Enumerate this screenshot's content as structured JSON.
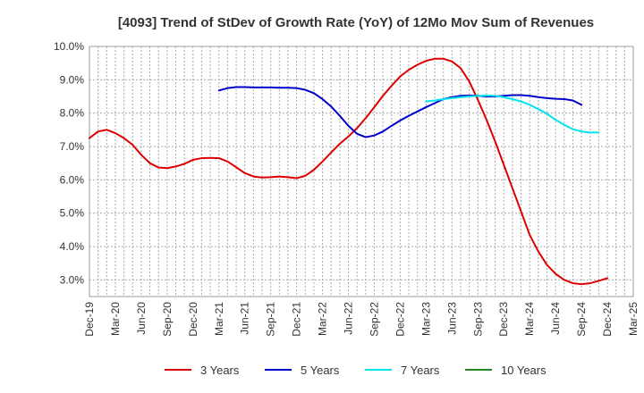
{
  "chart_data": {
    "type": "line",
    "title": "[4093]  Trend of StDev of Growth Rate (YoY) of 12Mo Mov Sum of Revenues",
    "xlabel": "",
    "ylabel": "",
    "ylim": [
      2.5,
      10.0
    ],
    "y_ticks": [
      3.0,
      4.0,
      5.0,
      6.0,
      7.0,
      8.0,
      9.0,
      10.0
    ],
    "y_tick_labels": [
      "3.0%",
      "4.0%",
      "5.0%",
      "6.0%",
      "7.0%",
      "8.0%",
      "9.0%",
      "10.0%"
    ],
    "x_start": "Dec-19",
    "x_tick_labels": [
      "Dec-19",
      "Mar-20",
      "Jun-20",
      "Sep-20",
      "Dec-20",
      "Mar-21",
      "Jun-21",
      "Sep-21",
      "Dec-21",
      "Mar-22",
      "Jun-22",
      "Sep-22",
      "Dec-22",
      "Mar-23",
      "Jun-23",
      "Sep-23",
      "Dec-23",
      "Mar-24",
      "Jun-24",
      "Sep-24",
      "Dec-24",
      "Mar-25"
    ],
    "grid": true,
    "legend_position": "bottom",
    "series": [
      {
        "name": "3 Years",
        "color": "#dd0000",
        "start_index": 0,
        "values": [
          7.25,
          7.45,
          7.5,
          7.4,
          7.25,
          7.05,
          6.75,
          6.5,
          6.37,
          6.35,
          6.4,
          6.48,
          6.6,
          6.65,
          6.66,
          6.65,
          6.55,
          6.38,
          6.2,
          6.1,
          6.07,
          6.08,
          6.1,
          6.08,
          6.05,
          6.12,
          6.3,
          6.55,
          6.82,
          7.08,
          7.3,
          7.55,
          7.85,
          8.18,
          8.52,
          8.82,
          9.1,
          9.3,
          9.45,
          9.57,
          9.63,
          9.63,
          9.55,
          9.35,
          8.95,
          8.4,
          7.8,
          7.15,
          6.45,
          5.75,
          5.05,
          4.35,
          3.85,
          3.45,
          3.18,
          3.0,
          2.9,
          2.87,
          2.9,
          2.97,
          3.05
        ]
      },
      {
        "name": "5 Years",
        "color": "#0000cc",
        "start_index": 15,
        "values": [
          8.68,
          8.75,
          8.78,
          8.78,
          8.77,
          8.77,
          8.77,
          8.76,
          8.76,
          8.75,
          8.7,
          8.6,
          8.42,
          8.2,
          7.92,
          7.62,
          7.38,
          7.28,
          7.33,
          7.45,
          7.62,
          7.78,
          7.92,
          8.05,
          8.18,
          8.3,
          8.42,
          8.48,
          8.52,
          8.53,
          8.52,
          8.5,
          8.5,
          8.52,
          8.54,
          8.54,
          8.52,
          8.48,
          8.45,
          8.43,
          8.42,
          8.38,
          8.25
        ]
      },
      {
        "name": "7 Years",
        "color": "#00e5ee",
        "start_index": 39,
        "values": [
          8.35,
          8.38,
          8.42,
          8.45,
          8.48,
          8.5,
          8.52,
          8.53,
          8.52,
          8.48,
          8.42,
          8.35,
          8.25,
          8.12,
          7.98,
          7.8,
          7.65,
          7.52,
          7.45,
          7.42,
          7.42
        ]
      },
      {
        "name": "10 Years",
        "color": "#228b22",
        "start_index": 0,
        "values": []
      }
    ]
  },
  "legend": {
    "items": [
      {
        "label": "3 Years",
        "color": "#dd0000"
      },
      {
        "label": "5 Years",
        "color": "#0000cc"
      },
      {
        "label": "7 Years",
        "color": "#00e5ee"
      },
      {
        "label": "10 Years",
        "color": "#228b22"
      }
    ]
  }
}
